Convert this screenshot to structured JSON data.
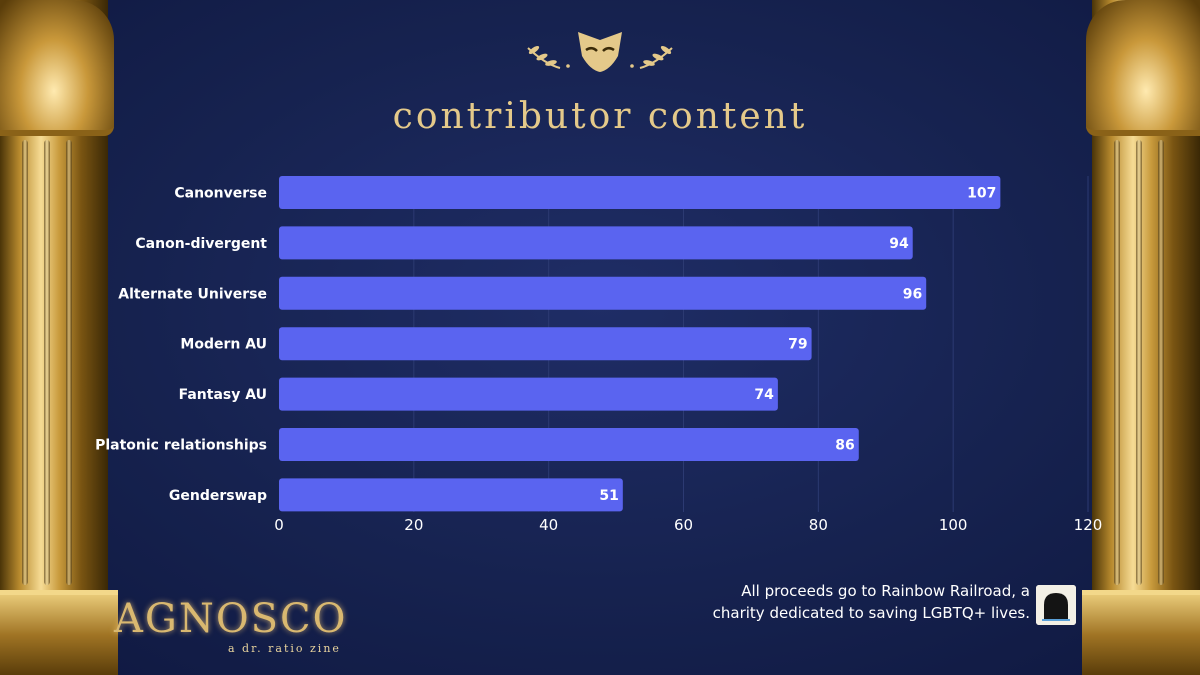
{
  "header": {
    "title": "contributor content"
  },
  "chart_data": {
    "type": "bar",
    "orientation": "horizontal",
    "categories": [
      "Canonverse",
      "Canon-divergent",
      "Alternate Universe",
      "Modern AU",
      "Fantasy AU",
      "Platonic relationships",
      "Genderswap"
    ],
    "values": [
      107,
      94,
      96,
      79,
      74,
      86,
      51
    ],
    "title": "contributor content",
    "xlabel": "",
    "ylabel": "",
    "xlim": [
      0,
      120
    ],
    "xticks": [
      0,
      20,
      40,
      60,
      80,
      100,
      120
    ],
    "grid": true,
    "data_labels": true,
    "bar_color": "#5a64f0"
  },
  "logo": {
    "name": "AGNOSCO",
    "subtitle": "a dr. ratio zine"
  },
  "footer": {
    "line1": "All proceeds go to Rainbow Railroad, a",
    "line2": "charity dedicated to saving LGBTQ+ lives."
  },
  "colors": {
    "background": "#16224f",
    "gold": "#e4c98a",
    "bar": "#5a64f0"
  }
}
